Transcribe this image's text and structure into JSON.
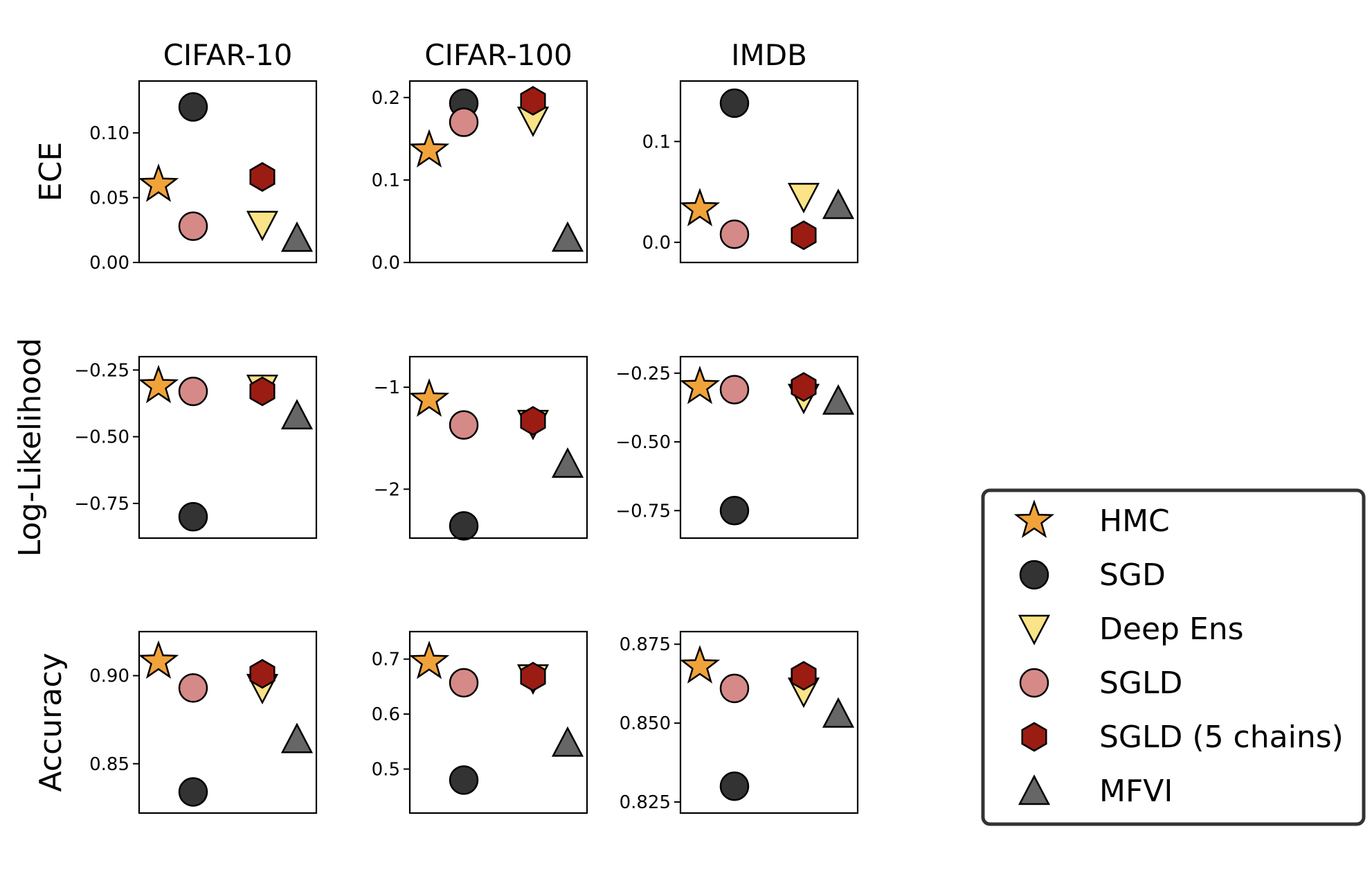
{
  "chart_data": {
    "type": "scatter",
    "columns": [
      "CIFAR-10",
      "CIFAR-100",
      "IMDB"
    ],
    "rows": [
      "ECE",
      "Log-Likelihood",
      "Accuracy"
    ],
    "methods": [
      {
        "name": "HMC",
        "marker": "star",
        "color": "#f0a33a"
      },
      {
        "name": "SGD",
        "marker": "circle",
        "color": "#333333"
      },
      {
        "name": "Deep Ens",
        "marker": "triangle-down",
        "color": "#fbe387"
      },
      {
        "name": "SGLD",
        "marker": "circle",
        "color": "#d58a88"
      },
      {
        "name": "SGLD (5 chains)",
        "marker": "hexagon",
        "color": "#9b1c12"
      },
      {
        "name": "MFVI",
        "marker": "triangle-up",
        "color": "#666666"
      }
    ],
    "x_positions": [
      0,
      1,
      3,
      1,
      3,
      4
    ],
    "panels": [
      {
        "row": "ECE",
        "column": "CIFAR-10",
        "ylim": [
          0,
          0.14
        ],
        "yticks": [
          0.0,
          0.05,
          0.1
        ],
        "yticklabels": [
          "0.00",
          "0.05",
          "0.10"
        ],
        "values": {
          "HMC": 0.06,
          "SGD": 0.12,
          "Deep Ens": 0.029,
          "SGLD": 0.028,
          "SGLD (5 chains)": 0.066,
          "MFVI": 0.019
        }
      },
      {
        "row": "ECE",
        "column": "CIFAR-100",
        "ylim": [
          0,
          0.22
        ],
        "yticks": [
          0.0,
          0.1,
          0.2
        ],
        "yticklabels": [
          "0.0",
          "0.1",
          "0.2"
        ],
        "values": {
          "HMC": 0.136,
          "SGD": 0.193,
          "Deep Ens": 0.172,
          "SGLD": 0.17,
          "SGLD (5 chains)": 0.196,
          "MFVI": 0.03
        }
      },
      {
        "row": "ECE",
        "column": "IMDB",
        "ylim": [
          -0.02,
          0.16
        ],
        "yticks": [
          0.0,
          0.1
        ],
        "yticklabels": [
          "0.0",
          "0.1"
        ],
        "values": {
          "HMC": 0.033,
          "SGD": 0.138,
          "Deep Ens": 0.045,
          "SGLD": 0.008,
          "SGLD (5 chains)": 0.007,
          "MFVI": 0.037
        }
      },
      {
        "row": "Log-Likelihood",
        "column": "CIFAR-10",
        "ylim": [
          -0.88,
          -0.2
        ],
        "yticks": [
          -0.25,
          -0.5,
          -0.75
        ],
        "yticklabels": [
          "−0.25",
          "−0.50",
          "−0.75"
        ],
        "values": {
          "HMC": -0.31,
          "SGD": -0.8,
          "Deep Ens": -0.32,
          "SGLD": -0.33,
          "SGLD (5 chains)": -0.33,
          "MFVI": -0.42
        }
      },
      {
        "row": "Log-Likelihood",
        "column": "CIFAR-100",
        "ylim": [
          -2.48,
          -0.7
        ],
        "yticks": [
          -1,
          -2
        ],
        "yticklabels": [
          "−1",
          "−2"
        ],
        "values": {
          "HMC": -1.12,
          "SGD": -2.36,
          "Deep Ens": -1.36,
          "SGLD": -1.37,
          "SGLD (5 chains)": -1.33,
          "MFVI": -1.75
        }
      },
      {
        "row": "Log-Likelihood",
        "column": "IMDB",
        "ylim": [
          -0.85,
          -0.19
        ],
        "yticks": [
          -0.25,
          -0.5,
          -0.75
        ],
        "yticklabels": [
          "−0.25",
          "−0.50",
          "−0.75"
        ],
        "values": {
          "HMC": -0.3,
          "SGD": -0.75,
          "Deep Ens": -0.34,
          "SGLD": -0.31,
          "SGLD (5 chains)": -0.3,
          "MFVI": -0.35
        }
      },
      {
        "row": "Accuracy",
        "column": "CIFAR-10",
        "ylim": [
          0.822,
          0.925
        ],
        "yticks": [
          0.85,
          0.9
        ],
        "yticklabels": [
          "0.85",
          "0.90"
        ],
        "values": {
          "HMC": 0.908,
          "SGD": 0.834,
          "Deep Ens": 0.893,
          "SGLD": 0.893,
          "SGLD (5 chains)": 0.901,
          "MFVI": 0.864
        }
      },
      {
        "row": "Accuracy",
        "column": "CIFAR-100",
        "ylim": [
          0.42,
          0.75
        ],
        "yticks": [
          0.5,
          0.6,
          0.7
        ],
        "yticklabels": [
          "0.5",
          "0.6",
          "0.7"
        ],
        "values": {
          "HMC": 0.695,
          "SGD": 0.48,
          "Deep Ens": 0.665,
          "SGLD": 0.657,
          "SGLD (5 chains)": 0.668,
          "MFVI": 0.548
        }
      },
      {
        "row": "Accuracy",
        "column": "IMDB",
        "ylim": [
          0.8215,
          0.879
        ],
        "yticks": [
          0.825,
          0.85,
          0.875
        ],
        "yticklabels": [
          "0.825",
          "0.850",
          "0.875"
        ],
        "values": {
          "HMC": 0.868,
          "SGD": 0.83,
          "Deep Ens": 0.86,
          "SGLD": 0.861,
          "SGLD (5 chains)": 0.865,
          "MFVI": 0.853
        }
      }
    ],
    "legend": {
      "placement": "lower-right",
      "entries": [
        "HMC",
        "SGD",
        "Deep Ens",
        "SGLD",
        "SGLD (5 chains)",
        "MFVI"
      ]
    },
    "grid": false
  }
}
